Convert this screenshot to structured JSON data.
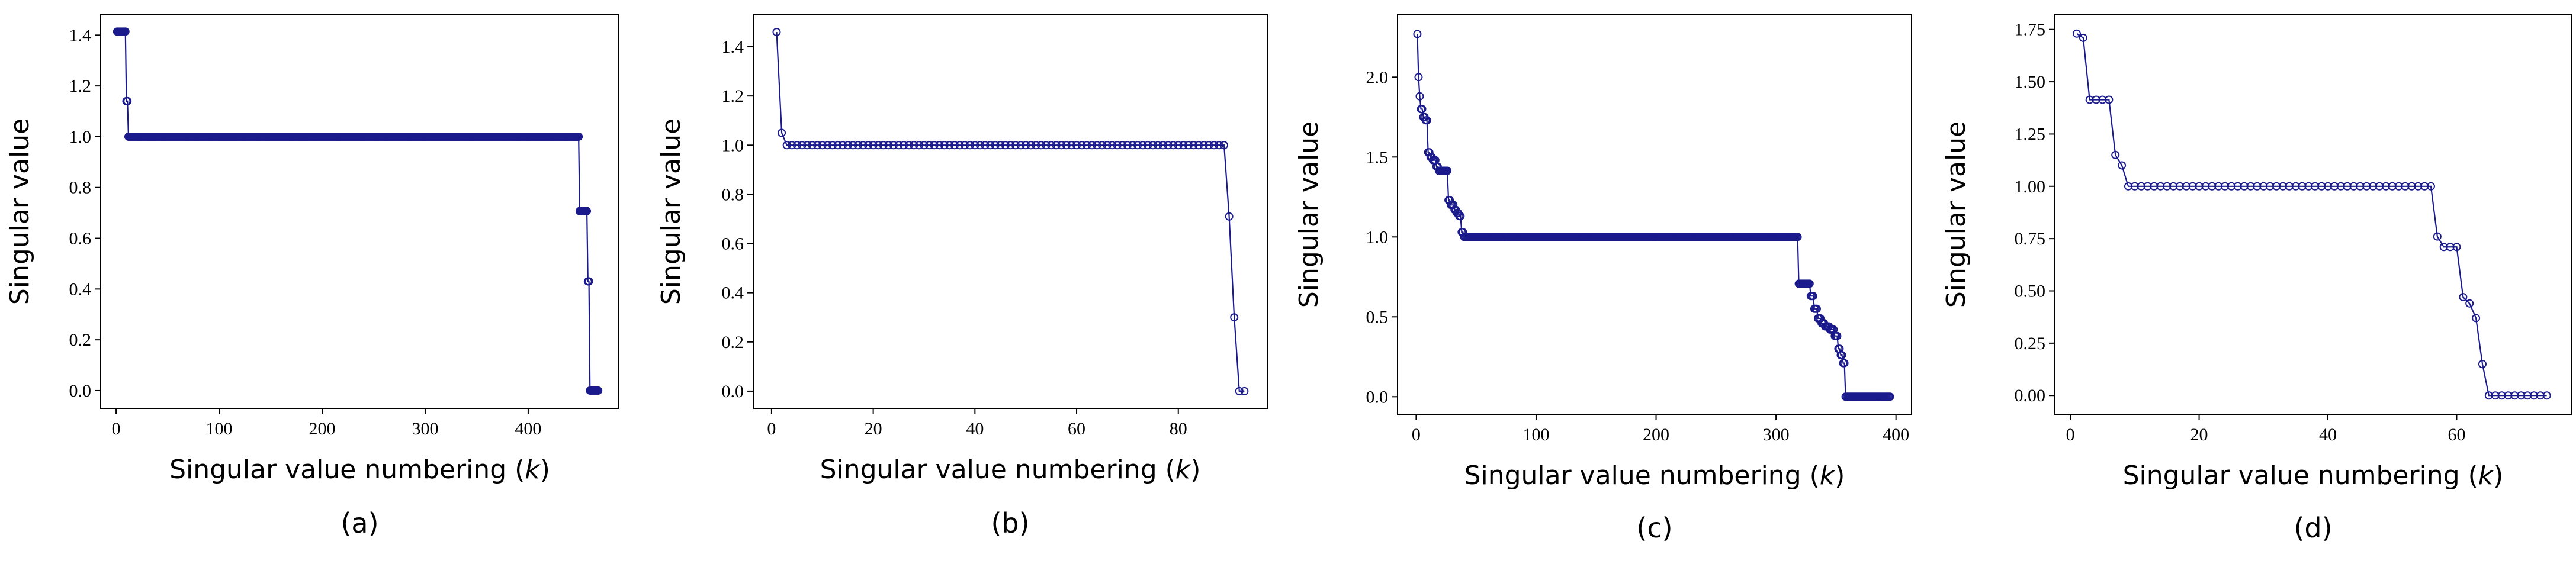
{
  "figure": {
    "line_color": "#1a1a8c",
    "marker_color": "#1a1a8c"
  },
  "chart_data": [
    {
      "type": "line",
      "panel_label": "(a)",
      "xlabel_main": "Singular value numbering (",
      "xlabel_var": "k",
      "xlabel_end": ")",
      "ylabel": "Singular value",
      "xlim": [
        -15,
        488
      ],
      "ylim": [
        -0.07,
        1.48
      ],
      "xticks": [
        0,
        100,
        200,
        300,
        400
      ],
      "xtick_labels": [
        "0",
        "100",
        "200",
        "300",
        "400"
      ],
      "yticks": [
        0.0,
        0.2,
        0.4,
        0.6,
        0.8,
        1.0,
        1.2,
        1.4
      ],
      "ytick_labels": [
        "0.0",
        "0.2",
        "0.4",
        "0.6",
        "0.8",
        "1.0",
        "1.2",
        "1.4"
      ],
      "segments": [
        {
          "from": 1,
          "to": 9,
          "value": 1.414
        },
        {
          "from": 10,
          "to": 11,
          "value": 1.14
        },
        {
          "from": 12,
          "to": 449,
          "value": 1.0
        },
        {
          "from": 450,
          "to": 457,
          "value": 0.707
        },
        {
          "from": 458,
          "to": 459,
          "value": 0.43
        },
        {
          "from": 460,
          "to": 468,
          "value": 0.0
        }
      ]
    },
    {
      "type": "line",
      "panel_label": "(b)",
      "xlabel_main": "Singular value numbering (",
      "xlabel_var": "k",
      "xlabel_end": ")",
      "ylabel": "Singular value",
      "xlim": [
        -3.6,
        97.5
      ],
      "ylim": [
        -0.07,
        1.53
      ],
      "xticks": [
        0,
        20,
        40,
        60,
        80
      ],
      "xtick_labels": [
        "0",
        "20",
        "40",
        "60",
        "80"
      ],
      "yticks": [
        0.0,
        0.2,
        0.4,
        0.6,
        0.8,
        1.0,
        1.2,
        1.4
      ],
      "ytick_labels": [
        "0.0",
        "0.2",
        "0.4",
        "0.6",
        "0.8",
        "1.0",
        "1.2",
        "1.4"
      ],
      "segments": [
        {
          "from": 1,
          "to": 1,
          "value": 1.46
        },
        {
          "from": 2,
          "to": 2,
          "value": 1.05
        },
        {
          "from": 3,
          "to": 89,
          "value": 1.0
        },
        {
          "from": 90,
          "to": 90,
          "value": 0.71
        },
        {
          "from": 91,
          "to": 91,
          "value": 0.3
        },
        {
          "from": 92,
          "to": 93,
          "value": 0.0
        }
      ]
    },
    {
      "type": "line",
      "panel_label": "(c)",
      "xlabel_main": "Singular value numbering (",
      "xlabel_var": "k",
      "xlabel_end": ")",
      "ylabel": "Singular value",
      "xlim": [
        -15.5,
        413
      ],
      "ylim": [
        -0.11,
        2.39
      ],
      "xticks": [
        0,
        100,
        200,
        300,
        400
      ],
      "xtick_labels": [
        "0",
        "100",
        "200",
        "300",
        "400"
      ],
      "yticks": [
        0.0,
        0.5,
        1.0,
        1.5,
        2.0
      ],
      "ytick_labels": [
        "0.0",
        "0.5",
        "1.0",
        "1.5",
        "2.0"
      ],
      "segments": [
        {
          "from": 1,
          "to": 1,
          "value": 2.27
        },
        {
          "from": 2,
          "to": 2,
          "value": 2.0
        },
        {
          "from": 3,
          "to": 3,
          "value": 1.88
        },
        {
          "from": 4,
          "to": 5,
          "value": 1.8
        },
        {
          "from": 6,
          "to": 7,
          "value": 1.75
        },
        {
          "from": 8,
          "to": 9,
          "value": 1.73
        },
        {
          "from": 10,
          "to": 11,
          "value": 1.53
        },
        {
          "from": 12,
          "to": 13,
          "value": 1.5
        },
        {
          "from": 14,
          "to": 16,
          "value": 1.48
        },
        {
          "from": 17,
          "to": 18,
          "value": 1.44
        },
        {
          "from": 19,
          "to": 26,
          "value": 1.414
        },
        {
          "from": 27,
          "to": 28,
          "value": 1.23
        },
        {
          "from": 29,
          "to": 31,
          "value": 1.2
        },
        {
          "from": 32,
          "to": 33,
          "value": 1.17
        },
        {
          "from": 34,
          "to": 35,
          "value": 1.15
        },
        {
          "from": 36,
          "to": 37,
          "value": 1.13
        },
        {
          "from": 38,
          "to": 39,
          "value": 1.03
        },
        {
          "from": 40,
          "to": 318,
          "value": 1.0
        },
        {
          "from": 319,
          "to": 328,
          "value": 0.707
        },
        {
          "from": 329,
          "to": 331,
          "value": 0.63
        },
        {
          "from": 332,
          "to": 334,
          "value": 0.55
        },
        {
          "from": 335,
          "to": 337,
          "value": 0.49
        },
        {
          "from": 338,
          "to": 340,
          "value": 0.46
        },
        {
          "from": 341,
          "to": 344,
          "value": 0.44
        },
        {
          "from": 345,
          "to": 348,
          "value": 0.42
        },
        {
          "from": 349,
          "to": 351,
          "value": 0.38
        },
        {
          "from": 352,
          "to": 353,
          "value": 0.3
        },
        {
          "from": 354,
          "to": 355,
          "value": 0.26
        },
        {
          "from": 356,
          "to": 357,
          "value": 0.21
        },
        {
          "from": 358,
          "to": 395,
          "value": 0.0
        }
      ]
    },
    {
      "type": "line",
      "panel_label": "(d)",
      "xlabel_main": "Singular value numbering (",
      "xlabel_var": "k",
      "xlabel_end": ")",
      "ylabel": "Singular value",
      "xlim": [
        -2.4,
        77.8
      ],
      "ylim": [
        -0.09,
        1.82
      ],
      "xticks": [
        0,
        20,
        40,
        60
      ],
      "xtick_labels": [
        "0",
        "20",
        "40",
        "60"
      ],
      "yticks": [
        0.0,
        0.25,
        0.5,
        0.75,
        1.0,
        1.25,
        1.5,
        1.75
      ],
      "ytick_labels": [
        "0.00",
        "0.25",
        "0.50",
        "0.75",
        "1.00",
        "1.25",
        "1.50",
        "1.75"
      ],
      "segments": [
        {
          "from": 1,
          "to": 1,
          "value": 1.73
        },
        {
          "from": 2,
          "to": 2,
          "value": 1.71
        },
        {
          "from": 3,
          "to": 6,
          "value": 1.414
        },
        {
          "from": 7,
          "to": 7,
          "value": 1.15
        },
        {
          "from": 8,
          "to": 8,
          "value": 1.1
        },
        {
          "from": 9,
          "to": 56,
          "value": 1.0
        },
        {
          "from": 57,
          "to": 57,
          "value": 0.76
        },
        {
          "from": 58,
          "to": 60,
          "value": 0.71
        },
        {
          "from": 61,
          "to": 61,
          "value": 0.47
        },
        {
          "from": 62,
          "to": 62,
          "value": 0.44
        },
        {
          "from": 63,
          "to": 63,
          "value": 0.37
        },
        {
          "from": 64,
          "to": 64,
          "value": 0.15
        },
        {
          "from": 65,
          "to": 74,
          "value": 0.0
        }
      ]
    }
  ]
}
